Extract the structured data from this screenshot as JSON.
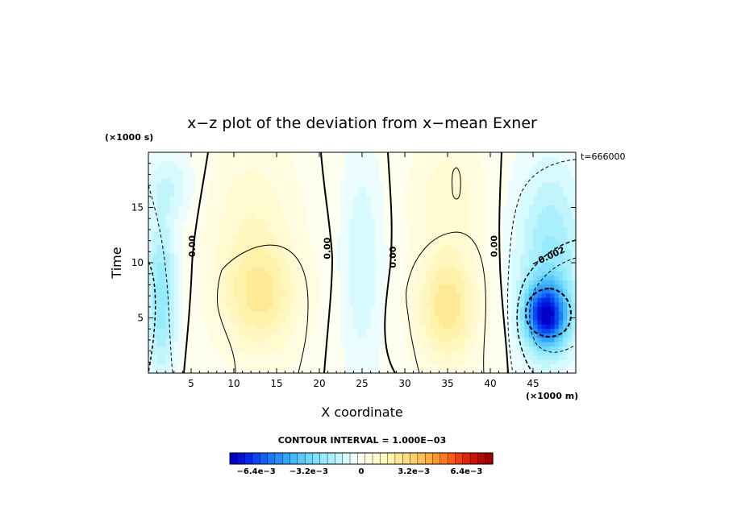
{
  "chart_data": {
    "type": "heatmap",
    "title": "x−z plot of the deviation from x−mean Exner",
    "xlabel": "X coordinate",
    "ylabel": "Time",
    "x_unit": "(×1000 m)",
    "y_unit": "(×1000 s)",
    "time_stamp": "t=666000",
    "xlim": [
      0,
      50
    ],
    "ylim": [
      0,
      20
    ],
    "x_ticks": [
      5,
      10,
      15,
      20,
      25,
      30,
      35,
      40,
      45
    ],
    "y_ticks": [
      5,
      10,
      15
    ],
    "contour_interval_text": "CONTOUR INTERVAL = 1.000E−03",
    "contour_labels": [
      {
        "text": "0.00",
        "x": 5.2,
        "y": 11.5
      },
      {
        "text": "0.00",
        "x": 21.0,
        "y": 11.3
      },
      {
        "text": "0.00",
        "x": 28.7,
        "y": 10.5
      },
      {
        "text": "0.00",
        "x": 40.5,
        "y": 11.5
      },
      {
        "text": "−0.002",
        "x": 46.8,
        "y": 10.5
      }
    ],
    "colorbar": {
      "min": -0.008,
      "max": 0.008,
      "ticks": [
        {
          "label": "−6.4e−3",
          "value": -0.0064
        },
        {
          "label": "−3.2e−3",
          "value": -0.0032
        },
        {
          "label": "0",
          "value": 0
        },
        {
          "label": "3.2e−3",
          "value": 0.0032
        },
        {
          "label": "6.4e−3",
          "value": 0.0064
        }
      ],
      "colors": [
        "#0000c8",
        "#0014d8",
        "#0028e6",
        "#0a46f0",
        "#1460f5",
        "#1e78f8",
        "#2890fa",
        "#32a5fc",
        "#46b9fc",
        "#5ac8fc",
        "#6ed7fc",
        "#82e1fc",
        "#96ebfc",
        "#aaf0fc",
        "#c0f5fc",
        "#d6fafe",
        "#ebfdfe",
        "#fffff0",
        "#fffce0",
        "#fffad0",
        "#fff7be",
        "#fff2aa",
        "#ffe896",
        "#ffdc82",
        "#ffcf6e",
        "#ffc05a",
        "#ffae46",
        "#ff9632",
        "#ff7c22",
        "#ff5e14",
        "#f0400a",
        "#dc2806",
        "#c81404",
        "#b40a02",
        "#a00000"
      ]
    },
    "features": [
      {
        "name": "left-negative-band",
        "x": 1.5,
        "y": 7,
        "sx": 1.8,
        "sy": 7,
        "amp": -0.0025
      },
      {
        "name": "left-top-negative",
        "x": 2.5,
        "y": 17,
        "sx": 3,
        "sy": 3,
        "amp": -0.001
      },
      {
        "name": "positive-blob-1",
        "x": 13,
        "y": 7,
        "sx": 4.5,
        "sy": 5,
        "amp": 0.0022
      },
      {
        "name": "positive-column-1",
        "x": 12,
        "y": 15,
        "sx": 5,
        "sy": 6,
        "amp": 0.0009
      },
      {
        "name": "middle-negative",
        "x": 25,
        "y": 10,
        "sx": 2.3,
        "sy": 10,
        "amp": -0.0011
      },
      {
        "name": "positive-blob-2",
        "x": 35,
        "y": 6,
        "sx": 3.5,
        "sy": 5,
        "amp": 0.0024
      },
      {
        "name": "positive-column-2",
        "x": 35,
        "y": 16,
        "sx": 4,
        "sy": 5,
        "amp": 0.001
      },
      {
        "name": "right-negative-core",
        "x": 46.5,
        "y": 5.2,
        "sx": 2.4,
        "sy": 2.8,
        "amp": -0.0065
      },
      {
        "name": "right-negative-halo",
        "x": 47,
        "y": 10,
        "sx": 4,
        "sy": 9,
        "amp": -0.0022
      }
    ]
  }
}
